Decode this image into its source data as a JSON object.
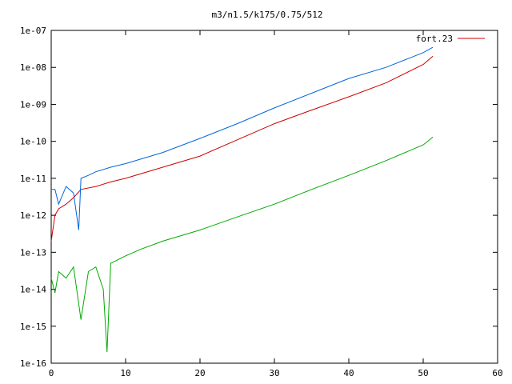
{
  "chart_data": {
    "type": "line",
    "title": "m3/n1.5/k175/0.75/512",
    "xlabel": "",
    "ylabel": "",
    "xlim": [
      0,
      60
    ],
    "ylim": [
      1e-16,
      1e-07
    ],
    "yscale": "log",
    "grid": false,
    "legend_position": "top-right",
    "x_ticks": [
      0,
      10,
      20,
      30,
      40,
      50,
      60
    ],
    "x_tick_labels": [
      "0",
      "10",
      "20",
      "30",
      "40",
      "50",
      "60"
    ],
    "y_ticks": [
      1e-16,
      1e-15,
      1e-14,
      1e-13,
      1e-12,
      1e-11,
      1e-10,
      1e-09,
      1e-08,
      1e-07
    ],
    "y_tick_labels": [
      "1e-16",
      "1e-15",
      "1e-14",
      "1e-13",
      "1e-12",
      "1e-11",
      "1e-10",
      "1e-09",
      "1e-08",
      "1e-07"
    ],
    "series": [
      {
        "name": "fort.23",
        "color": "#cc0000",
        "x": [
          0,
          0.5,
          1,
          2,
          3,
          4,
          6,
          8,
          10,
          15,
          20,
          25,
          30,
          35,
          40,
          45,
          50,
          51.3
        ],
        "y": [
          2e-13,
          1e-12,
          1.5e-12,
          2e-12,
          3e-12,
          5e-12,
          6e-12,
          8e-12,
          1e-11,
          2e-11,
          4e-11,
          1.1e-10,
          3e-10,
          7e-10,
          1.6e-09,
          3.8e-09,
          1.2e-08,
          2e-08
        ]
      },
      {
        "name": "",
        "color": "#0066dd",
        "x": [
          0,
          0.5,
          1,
          2,
          3,
          3.7,
          4,
          5,
          6,
          8,
          10,
          15,
          20,
          25,
          30,
          35,
          40,
          45,
          50,
          51.3
        ],
        "y": [
          5e-12,
          5e-12,
          2e-12,
          6e-12,
          4e-12,
          4e-13,
          1e-11,
          1.2e-11,
          1.5e-11,
          2e-11,
          2.5e-11,
          5e-11,
          1.2e-10,
          3e-10,
          8e-10,
          2e-09,
          5e-09,
          1e-08,
          2.5e-08,
          3.5e-08
        ]
      },
      {
        "name": "",
        "color": "#00aa00",
        "x": [
          0,
          0.5,
          1,
          2,
          3,
          4,
          5,
          6,
          7,
          7.5,
          8,
          10,
          12,
          15,
          20,
          25,
          30,
          35,
          40,
          45,
          50,
          51.3
        ],
        "y": [
          2e-14,
          8e-15,
          3e-14,
          2e-14,
          4e-14,
          1.5e-15,
          3e-14,
          4e-14,
          1e-14,
          2e-16,
          5e-14,
          8e-14,
          1.2e-13,
          2e-13,
          4e-13,
          9e-13,
          2e-12,
          5e-12,
          1.2e-11,
          3e-11,
          8e-11,
          1.3e-10
        ]
      }
    ]
  }
}
